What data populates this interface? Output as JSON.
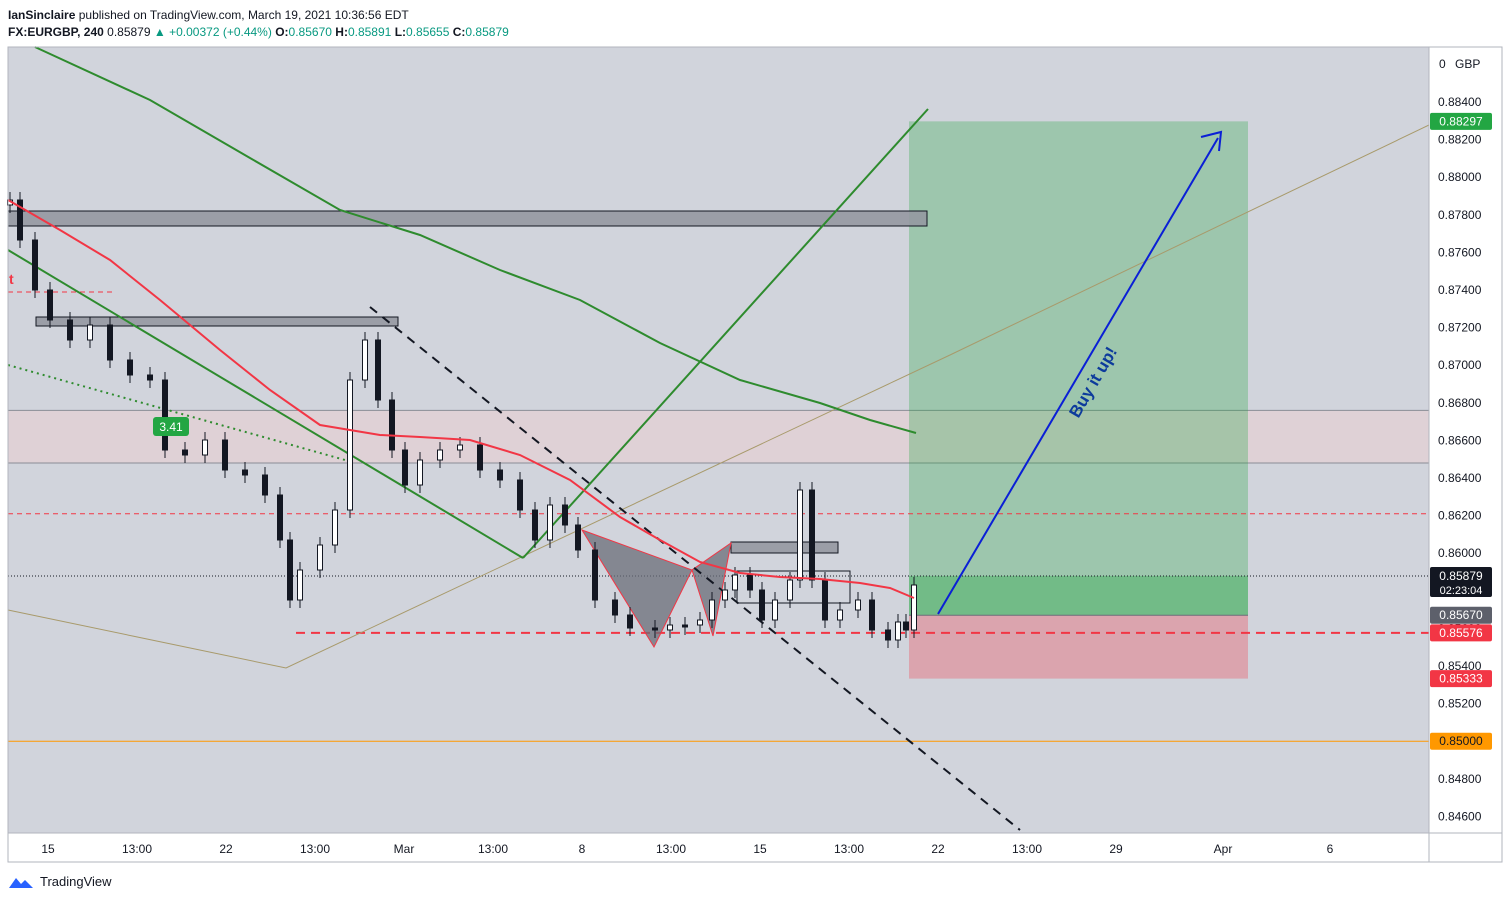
{
  "header": {
    "author": "IanSinclaire",
    "published_text": "published on TradingView.com, March 19, 2021 10:36:56 EDT",
    "symbol": "FX:EURGBP, 240",
    "last": "0.85879",
    "change": "▲ +0.00372 (+0.44%)",
    "open_label": "O:",
    "open": "0.85670",
    "high_label": "H:",
    "high": "0.85891",
    "low_label": "L:",
    "low": "0.85655",
    "close_label": "C:",
    "close": "0.85879"
  },
  "footer": {
    "brand": "TradingView"
  },
  "chart_data": {
    "type": "candlestick",
    "currency": "GBP",
    "currency_marker": "0",
    "ylim": [
      0.8452,
      0.8895
    ],
    "y_ticks": [
      "0.88400",
      "0.88200",
      "0.88000",
      "0.87800",
      "0.87600",
      "0.87400",
      "0.87200",
      "0.87000",
      "0.86800",
      "0.86600",
      "0.86400",
      "0.86200",
      "0.86000",
      "0.85800",
      "0.85600",
      "0.85400",
      "0.85200",
      "0.85000",
      "0.84800",
      "0.84600"
    ],
    "x_ticks": [
      "15",
      "13:00",
      "22",
      "13:00",
      "Mar",
      "13:00",
      "8",
      "13:00",
      "15",
      "13:00",
      "22",
      "13:00",
      "29",
      "Apr",
      "6"
    ],
    "price_labels": [
      {
        "label": "0.88297",
        "value": 0.88297,
        "color": "#23a643",
        "text_color": "#ffffff",
        "kind": "target"
      },
      {
        "label": "0.85879",
        "value": 0.85879,
        "color": "#131722",
        "text_color": "#ffffff",
        "kind": "last",
        "sub": "02:23:04"
      },
      {
        "label": "0.85670",
        "value": 0.8567,
        "color": "#5d606b",
        "text_color": "#ffffff",
        "kind": "entry"
      },
      {
        "label": "0.85576",
        "value": 0.85576,
        "color": "#f23645",
        "text_color": "#ffffff",
        "kind": "level"
      },
      {
        "label": "0.85333",
        "value": 0.85333,
        "color": "#f23645",
        "text_color": "#ffffff",
        "kind": "stop"
      },
      {
        "label": "0.85000",
        "value": 0.85,
        "color": "#ff9800",
        "text_color": "#131722",
        "kind": "support"
      }
    ],
    "position": {
      "direction": "long",
      "entry": 0.8567,
      "target": 0.88297,
      "stop": 0.85333
    },
    "resistance_zone": [
      0.8648,
      0.8676
    ],
    "levels": [
      {
        "name": "dotted-last",
        "value": 0.85879,
        "style": "dotted",
        "color": "#131722"
      },
      {
        "name": "red-dashed-upper",
        "value": 0.8621,
        "style": "dashed",
        "color": "#f23645"
      },
      {
        "name": "red-dashed-lower",
        "value": 0.85576,
        "style": "dashed",
        "color": "#f23645"
      },
      {
        "name": "orange-support",
        "value": 0.85,
        "style": "solid",
        "color": "#ff9800"
      }
    ],
    "annotations": [
      {
        "type": "badge",
        "text": "3.41",
        "color": "#23a643"
      },
      {
        "type": "arrow_label",
        "text": "Buy it up!",
        "color": "#0d3b9c"
      }
    ],
    "colors": {
      "up": "#ffffff",
      "down": "#131722",
      "ema_fast": "#f23645",
      "ema_slow": "#2e8b2e",
      "trend": "#2e8b2e",
      "position_profit": "#23a643",
      "position_loss": "#f23645",
      "arrow": "#0a1fd6",
      "background": "#d1d4dc",
      "grid": false
    }
  }
}
